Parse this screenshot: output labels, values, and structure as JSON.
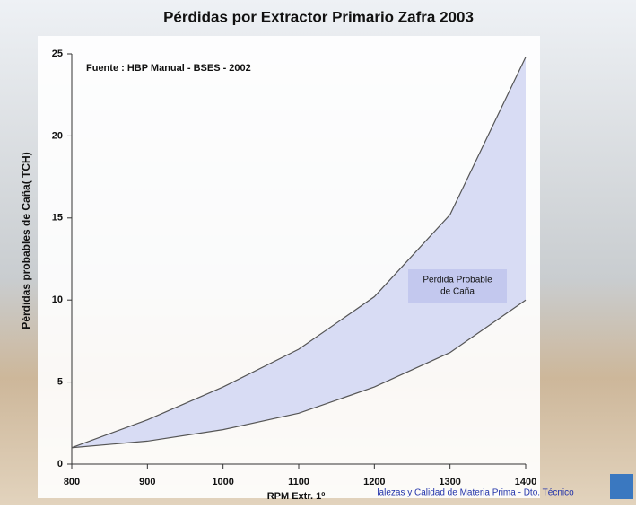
{
  "chart_data": {
    "type": "band",
    "title": "Pérdidas por Extractor Primario Zafra 2003",
    "annotation": "Fuente : HBP Manual - BSES - 2002",
    "area_label": [
      "Pérdida Probable",
      "de Caña"
    ],
    "y_label": "Pérdidas  probables de Caña( TCH)",
    "x_label": "RPM Extr. 1º",
    "footer": "lalezas y Calidad de Materia Prima - Dto. Técnico",
    "x": [
      800,
      900,
      1000,
      1100,
      1200,
      1300,
      1400
    ],
    "series": [
      {
        "color": "#555555",
        "values": [
          1,
          2.7,
          4.7,
          7,
          10.2,
          15.2,
          24.8
        ]
      },
      {
        "color": "#555555",
        "values": [
          1,
          1.4,
          2.1,
          3.1,
          4.7,
          6.8,
          10
        ]
      }
    ],
    "fill": "#d8dcf4",
    "xlim": [
      800,
      1400
    ],
    "xticks": [
      800,
      900,
      1000,
      1100,
      1200,
      1300,
      1400
    ],
    "ylim": [
      0,
      25
    ],
    "yticks": [
      0,
      5,
      10,
      15,
      20,
      25
    ]
  }
}
